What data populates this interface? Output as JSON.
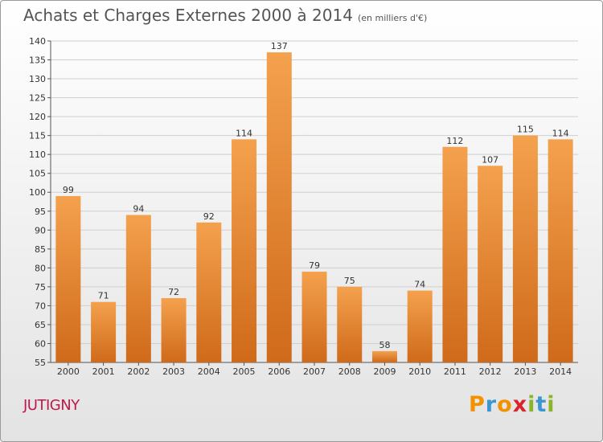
{
  "header": {
    "title": "Achats et Charges Externes 2000 à 2014",
    "unit": "(en milliers d'€)"
  },
  "commune": "JUTIGNY",
  "logo": {
    "letters": [
      "P",
      "r",
      "o",
      "x",
      "i",
      "t",
      "i"
    ],
    "colors": [
      "#f39200",
      "#3c96d2",
      "#f39200",
      "#d9232d",
      "#8bb529",
      "#3c96d2",
      "#8bb529"
    ]
  },
  "colors": {
    "bar_top": "#f4a14d",
    "bar_bottom": "#cf6a1a",
    "grid": "#cfcfcf",
    "commune": "#c0174c"
  },
  "chart_data": {
    "type": "bar",
    "categories": [
      "2000",
      "2001",
      "2002",
      "2003",
      "2004",
      "2005",
      "2006",
      "2007",
      "2008",
      "2009",
      "2010",
      "2011",
      "2012",
      "2013",
      "2014"
    ],
    "values": [
      99,
      71,
      94,
      72,
      92,
      114,
      137,
      79,
      75,
      58,
      74,
      112,
      107,
      115,
      114
    ],
    "title": "Achats et Charges Externes 2000 à 2014",
    "ylim": [
      55,
      140
    ],
    "yticks": [
      55,
      60,
      65,
      70,
      75,
      80,
      85,
      90,
      95,
      100,
      105,
      110,
      115,
      120,
      125,
      130,
      135,
      140
    ],
    "grid": true,
    "data_labels": true
  }
}
